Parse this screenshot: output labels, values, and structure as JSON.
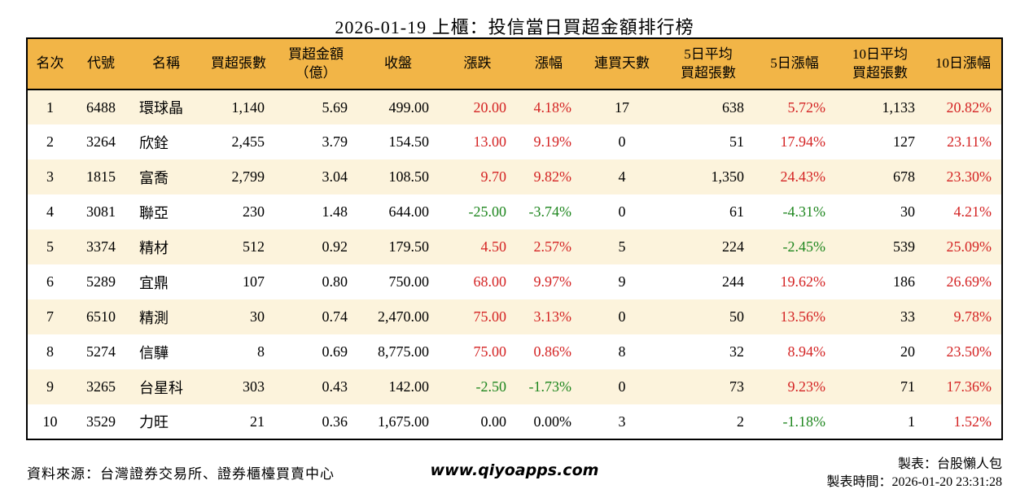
{
  "title": "2026-01-19 上櫃：投信當日買超金額排行榜",
  "colors": {
    "header_bg": "#F2B547",
    "row_alt_bg": "#FCF3DC",
    "up_red": "#D42323",
    "down_green": "#1E861E",
    "border": "#000000"
  },
  "table": {
    "headers": [
      "名次",
      "代號",
      "名稱",
      "買超張數",
      "買超金額\n（億）",
      "收盤",
      "漲跌",
      "漲幅",
      "連買天數",
      "5日平均\n買超張數",
      "5日漲幅",
      "10日平均\n買超張數",
      "10日漲幅"
    ],
    "rows": [
      {
        "rank": "1",
        "code": "6488",
        "name": "環球晶",
        "buy_shares": "1,140",
        "buy_amount": "5.69",
        "close": "499.00",
        "change": "20.00",
        "change_cls": "up",
        "change_pct": "4.18%",
        "change_pct_cls": "up",
        "streak": "17",
        "avg5": "638",
        "pct5": "5.72%",
        "pct5_cls": "up",
        "avg10": "1,133",
        "pct10": "20.82%",
        "pct10_cls": "up"
      },
      {
        "rank": "2",
        "code": "3264",
        "name": "欣銓",
        "buy_shares": "2,455",
        "buy_amount": "3.79",
        "close": "154.50",
        "change": "13.00",
        "change_cls": "up",
        "change_pct": "9.19%",
        "change_pct_cls": "up",
        "streak": "0",
        "avg5": "51",
        "pct5": "17.94%",
        "pct5_cls": "up",
        "avg10": "127",
        "pct10": "23.11%",
        "pct10_cls": "up"
      },
      {
        "rank": "3",
        "code": "1815",
        "name": "富喬",
        "buy_shares": "2,799",
        "buy_amount": "3.04",
        "close": "108.50",
        "change": "9.70",
        "change_cls": "up",
        "change_pct": "9.82%",
        "change_pct_cls": "up",
        "streak": "4",
        "avg5": "1,350",
        "pct5": "24.43%",
        "pct5_cls": "up",
        "avg10": "678",
        "pct10": "23.30%",
        "pct10_cls": "up"
      },
      {
        "rank": "4",
        "code": "3081",
        "name": "聯亞",
        "buy_shares": "230",
        "buy_amount": "1.48",
        "close": "644.00",
        "change": "-25.00",
        "change_cls": "down",
        "change_pct": "-3.74%",
        "change_pct_cls": "down",
        "streak": "0",
        "avg5": "61",
        "pct5": "-4.31%",
        "pct5_cls": "down",
        "avg10": "30",
        "pct10": "4.21%",
        "pct10_cls": "up"
      },
      {
        "rank": "5",
        "code": "3374",
        "name": "精材",
        "buy_shares": "512",
        "buy_amount": "0.92",
        "close": "179.50",
        "change": "4.50",
        "change_cls": "up",
        "change_pct": "2.57%",
        "change_pct_cls": "up",
        "streak": "5",
        "avg5": "224",
        "pct5": "-2.45%",
        "pct5_cls": "down",
        "avg10": "539",
        "pct10": "25.09%",
        "pct10_cls": "up"
      },
      {
        "rank": "6",
        "code": "5289",
        "name": "宜鼎",
        "buy_shares": "107",
        "buy_amount": "0.80",
        "close": "750.00",
        "change": "68.00",
        "change_cls": "up",
        "change_pct": "9.97%",
        "change_pct_cls": "up",
        "streak": "9",
        "avg5": "244",
        "pct5": "19.62%",
        "pct5_cls": "up",
        "avg10": "186",
        "pct10": "26.69%",
        "pct10_cls": "up"
      },
      {
        "rank": "7",
        "code": "6510",
        "name": "精測",
        "buy_shares": "30",
        "buy_amount": "0.74",
        "close": "2,470.00",
        "change": "75.00",
        "change_cls": "up",
        "change_pct": "3.13%",
        "change_pct_cls": "up",
        "streak": "0",
        "avg5": "50",
        "pct5": "13.56%",
        "pct5_cls": "up",
        "avg10": "33",
        "pct10": "9.78%",
        "pct10_cls": "up"
      },
      {
        "rank": "8",
        "code": "5274",
        "name": "信驊",
        "buy_shares": "8",
        "buy_amount": "0.69",
        "close": "8,775.00",
        "change": "75.00",
        "change_cls": "up",
        "change_pct": "0.86%",
        "change_pct_cls": "up",
        "streak": "8",
        "avg5": "32",
        "pct5": "8.94%",
        "pct5_cls": "up",
        "avg10": "20",
        "pct10": "23.50%",
        "pct10_cls": "up"
      },
      {
        "rank": "9",
        "code": "3265",
        "name": "台星科",
        "buy_shares": "303",
        "buy_amount": "0.43",
        "close": "142.00",
        "change": "-2.50",
        "change_cls": "down",
        "change_pct": "-1.73%",
        "change_pct_cls": "down",
        "streak": "0",
        "avg5": "73",
        "pct5": "9.23%",
        "pct5_cls": "up",
        "avg10": "71",
        "pct10": "17.36%",
        "pct10_cls": "up"
      },
      {
        "rank": "10",
        "code": "3529",
        "name": "力旺",
        "buy_shares": "21",
        "buy_amount": "0.36",
        "close": "1,675.00",
        "change": "0.00",
        "change_cls": "flat",
        "change_pct": "0.00%",
        "change_pct_cls": "flat",
        "streak": "3",
        "avg5": "2",
        "pct5": "-1.18%",
        "pct5_cls": "down",
        "avg10": "1",
        "pct10": "1.52%",
        "pct10_cls": "up"
      }
    ]
  },
  "footer": {
    "source": "資料來源：台灣證券交易所、證券櫃檯買賣中心",
    "website": "www.qiyoapps.com",
    "maker": "製表：台股懶人包",
    "timestamp": "製表時間：2026-01-20 23:31:28"
  }
}
